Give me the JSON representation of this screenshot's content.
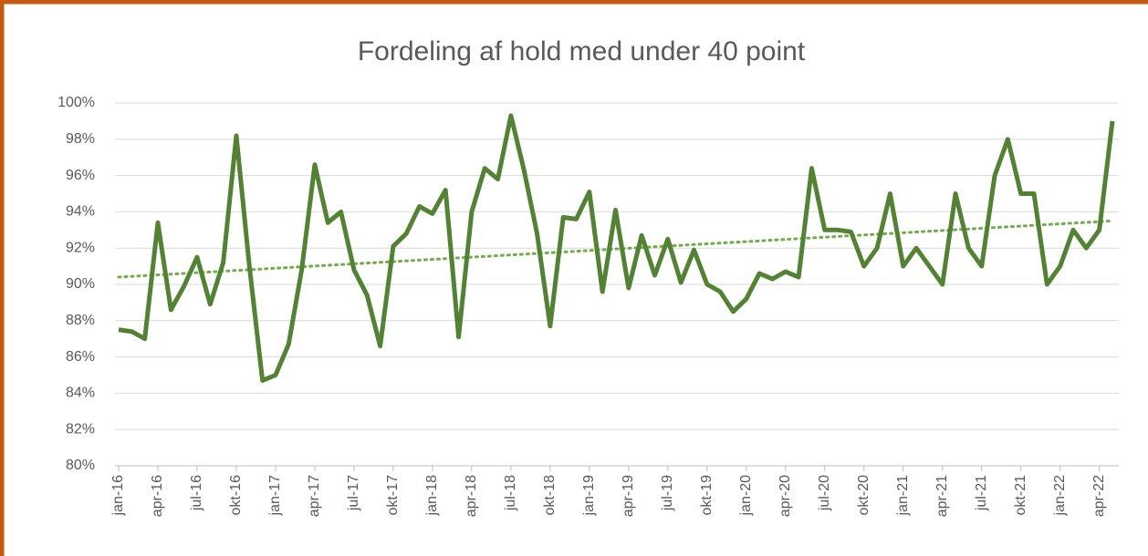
{
  "chart_data": {
    "type": "line",
    "title": "Fordeling af  hold med under 40 point",
    "categories": [
      "jan-16",
      null,
      null,
      "apr-16",
      null,
      null,
      "jul-16",
      null,
      null,
      "okt-16",
      null,
      null,
      "jan-17",
      null,
      null,
      "apr-17",
      null,
      null,
      "jul-17",
      null,
      null,
      "okt-17",
      null,
      null,
      "jan-18",
      null,
      null,
      "apr-18",
      null,
      null,
      "jul-18",
      null,
      null,
      "okt-18",
      null,
      null,
      "jan-19",
      null,
      null,
      "apr-19",
      null,
      null,
      "jul-19",
      null,
      null,
      "okt-19",
      null,
      null,
      "jan-20",
      null,
      null,
      "apr-20",
      null,
      null,
      "jul-20",
      null,
      null,
      "okt-20",
      null,
      null,
      "jan-21",
      null,
      null,
      "apr-21",
      null,
      null,
      "jul-21",
      null,
      null,
      "okt-21",
      null,
      null,
      "jan-22",
      null,
      null,
      "apr-22",
      null
    ],
    "series": [
      {
        "color": "#548235",
        "values": [
          87.5,
          87.4,
          87.0,
          93.4,
          88.6,
          89.9,
          91.5,
          88.9,
          91.2,
          98.2,
          91.0,
          84.7,
          85.0,
          86.7,
          90.8,
          96.6,
          93.4,
          94.0,
          90.8,
          89.4,
          86.6,
          92.1,
          92.8,
          94.3,
          93.9,
          95.2,
          87.1,
          94.0,
          96.4,
          95.8,
          99.3,
          96.3,
          92.8,
          87.7,
          93.7,
          93.6,
          95.1,
          89.6,
          94.1,
          89.8,
          92.7,
          90.5,
          92.5,
          90.1,
          91.9,
          90.0,
          89.6,
          88.5,
          89.2,
          90.6,
          90.3,
          90.7,
          90.4,
          96.4,
          93.0,
          93.0,
          92.9,
          91.0,
          92.0,
          95.0,
          91.0,
          92.0,
          91.0,
          90.0,
          95.0,
          92.0,
          91.0,
          96.0,
          98.0,
          95.0,
          95.0,
          90.0,
          91.0,
          93.0,
          92.0,
          93.0,
          99.0
        ]
      }
    ],
    "trendline": {
      "color": "#70ad47",
      "start": 90.4,
      "end": 93.5
    },
    "ylim": [
      80,
      100
    ],
    "yticks": [
      {
        "value": 80,
        "label": "80%"
      },
      {
        "value": 82,
        "label": "82%"
      },
      {
        "value": 84,
        "label": "84%"
      },
      {
        "value": 86,
        "label": "86%"
      },
      {
        "value": 88,
        "label": "88%"
      },
      {
        "value": 90,
        "label": "90%"
      },
      {
        "value": 92,
        "label": "92%"
      },
      {
        "value": 94,
        "label": "94%"
      },
      {
        "value": 96,
        "label": "96%"
      },
      {
        "value": 98,
        "label": "98%"
      },
      {
        "value": 100,
        "label": "100%"
      }
    ],
    "grid": true
  }
}
